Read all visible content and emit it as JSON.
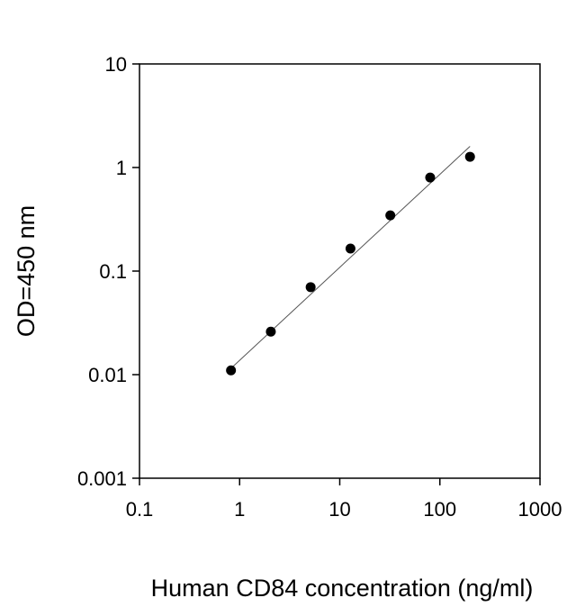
{
  "chart_data": {
    "type": "scatter",
    "title": "",
    "xlabel": "Human CD84 concentration (ng/ml)",
    "ylabel": "OD=450 nm",
    "x_scale": "log",
    "y_scale": "log",
    "xlim": [
      0.1,
      1000
    ],
    "ylim": [
      0.001,
      10
    ],
    "x_ticks": [
      "0.1",
      "1",
      "10",
      "100",
      "1000"
    ],
    "y_ticks": [
      "10",
      "1",
      "0.1",
      "0.01",
      "0.001"
    ],
    "grid": false,
    "legend": "none",
    "marker_color": "#000000",
    "line_color": "#555555",
    "points": [
      {
        "x": 0.82,
        "y": 0.011
      },
      {
        "x": 2.05,
        "y": 0.026
      },
      {
        "x": 5.12,
        "y": 0.07
      },
      {
        "x": 12.8,
        "y": 0.165
      },
      {
        "x": 32,
        "y": 0.345
      },
      {
        "x": 80,
        "y": 0.8
      },
      {
        "x": 200,
        "y": 1.27
      }
    ],
    "fit_line": [
      {
        "x": 0.82,
        "y": 0.0115
      },
      {
        "x": 200,
        "y": 1.6
      }
    ]
  }
}
